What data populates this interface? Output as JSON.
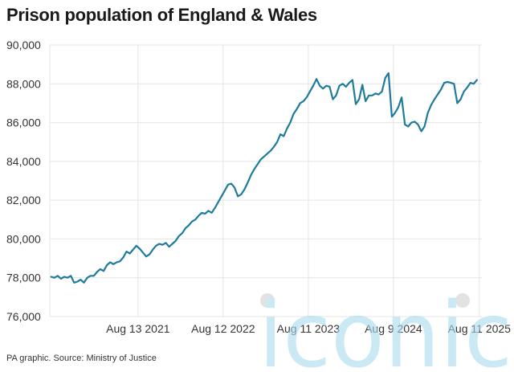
{
  "title": "Prison population of England & Wales",
  "source": "PA graphic. Source: Ministry of Justice",
  "watermark": {
    "text": "iconic"
  },
  "colors": {
    "line": "#1e7b9c",
    "grid": "#e4e4e4",
    "axis_text": "#333333",
    "watermark": "#a8dcef"
  },
  "chart_data": {
    "type": "line",
    "title": "Prison population of England & Wales",
    "xlabel": "",
    "ylabel": "",
    "ylim": [
      76000,
      90000
    ],
    "yticks": [
      76000,
      78000,
      80000,
      82000,
      84000,
      86000,
      88000,
      90000
    ],
    "ytick_labels": [
      "76,000",
      "78,000",
      "80,000",
      "82,000",
      "84,000",
      "86,000",
      "88,000",
      "90,000"
    ],
    "xlim": [
      "2020-08-01",
      "2025-08-22"
    ],
    "xticks": [
      {
        "date": "2021-08-13",
        "label": "Aug 13 2021"
      },
      {
        "date": "2022-08-12",
        "label": "Aug 12 2022"
      },
      {
        "date": "2023-08-11",
        "label": "Aug 11 2023"
      },
      {
        "date": "2024-08-09",
        "label": "Aug 9 2024"
      },
      {
        "date": "2025-08-11",
        "label": "Aug 11 2025"
      }
    ],
    "grid": true,
    "series": [
      {
        "name": "Prison population",
        "points": [
          [
            "2020-08-07",
            78050
          ],
          [
            "2020-08-21",
            78000
          ],
          [
            "2020-09-04",
            78100
          ],
          [
            "2020-09-18",
            77950
          ],
          [
            "2020-10-02",
            78050
          ],
          [
            "2020-10-16",
            78000
          ],
          [
            "2020-10-30",
            78100
          ],
          [
            "2020-11-13",
            77750
          ],
          [
            "2020-11-27",
            77800
          ],
          [
            "2020-12-11",
            77900
          ],
          [
            "2020-12-25",
            77750
          ],
          [
            "2021-01-08",
            78000
          ],
          [
            "2021-01-22",
            78100
          ],
          [
            "2021-02-05",
            78100
          ],
          [
            "2021-02-19",
            78300
          ],
          [
            "2021-03-05",
            78450
          ],
          [
            "2021-03-19",
            78350
          ],
          [
            "2021-04-02",
            78650
          ],
          [
            "2021-04-16",
            78800
          ],
          [
            "2021-04-30",
            78700
          ],
          [
            "2021-05-14",
            78800
          ],
          [
            "2021-05-28",
            78850
          ],
          [
            "2021-06-11",
            79050
          ],
          [
            "2021-06-25",
            79350
          ],
          [
            "2021-07-09",
            79250
          ],
          [
            "2021-07-23",
            79450
          ],
          [
            "2021-08-06",
            79650
          ],
          [
            "2021-08-20",
            79500
          ],
          [
            "2021-09-03",
            79300
          ],
          [
            "2021-09-17",
            79100
          ],
          [
            "2021-10-01",
            79200
          ],
          [
            "2021-10-15",
            79450
          ],
          [
            "2021-10-29",
            79650
          ],
          [
            "2021-11-12",
            79750
          ],
          [
            "2021-11-26",
            79700
          ],
          [
            "2021-12-10",
            79800
          ],
          [
            "2021-12-24",
            79600
          ],
          [
            "2022-01-07",
            79750
          ],
          [
            "2022-01-21",
            79900
          ],
          [
            "2022-02-04",
            80150
          ],
          [
            "2022-02-18",
            80300
          ],
          [
            "2022-03-04",
            80550
          ],
          [
            "2022-03-18",
            80700
          ],
          [
            "2022-04-01",
            80900
          ],
          [
            "2022-04-15",
            81000
          ],
          [
            "2022-04-29",
            81200
          ],
          [
            "2022-05-13",
            81350
          ],
          [
            "2022-05-27",
            81300
          ],
          [
            "2022-06-10",
            81450
          ],
          [
            "2022-06-24",
            81350
          ],
          [
            "2022-07-08",
            81600
          ],
          [
            "2022-07-22",
            81900
          ],
          [
            "2022-08-05",
            82200
          ],
          [
            "2022-08-19",
            82500
          ],
          [
            "2022-09-02",
            82800
          ],
          [
            "2022-09-16",
            82850
          ],
          [
            "2022-09-30",
            82650
          ],
          [
            "2022-10-14",
            82200
          ],
          [
            "2022-10-28",
            82300
          ],
          [
            "2022-11-11",
            82550
          ],
          [
            "2022-11-25",
            82900
          ],
          [
            "2022-12-09",
            83300
          ],
          [
            "2022-12-23",
            83600
          ],
          [
            "2023-01-06",
            83850
          ],
          [
            "2023-01-20",
            84100
          ],
          [
            "2023-02-03",
            84250
          ],
          [
            "2023-02-17",
            84400
          ],
          [
            "2023-03-03",
            84550
          ],
          [
            "2023-03-17",
            84750
          ],
          [
            "2023-03-31",
            85000
          ],
          [
            "2023-04-14",
            85400
          ],
          [
            "2023-04-28",
            85300
          ],
          [
            "2023-05-12",
            85700
          ],
          [
            "2023-05-26",
            86000
          ],
          [
            "2023-06-09",
            86450
          ],
          [
            "2023-06-23",
            86700
          ],
          [
            "2023-07-07",
            87000
          ],
          [
            "2023-07-21",
            87100
          ],
          [
            "2023-08-04",
            87300
          ],
          [
            "2023-08-18",
            87600
          ],
          [
            "2023-09-01",
            87900
          ],
          [
            "2023-09-15",
            88250
          ],
          [
            "2023-09-29",
            87900
          ],
          [
            "2023-10-13",
            87750
          ],
          [
            "2023-10-27",
            87900
          ],
          [
            "2023-11-10",
            87850
          ],
          [
            "2023-11-24",
            87200
          ],
          [
            "2023-12-08",
            87400
          ],
          [
            "2023-12-22",
            87900
          ],
          [
            "2024-01-05",
            88000
          ],
          [
            "2024-01-19",
            87850
          ],
          [
            "2024-02-02",
            88050
          ],
          [
            "2024-02-16",
            88200
          ],
          [
            "2024-03-01",
            86950
          ],
          [
            "2024-03-15",
            87200
          ],
          [
            "2024-03-29",
            87950
          ],
          [
            "2024-04-12",
            87100
          ],
          [
            "2024-04-26",
            87400
          ],
          [
            "2024-05-10",
            87400
          ],
          [
            "2024-05-24",
            87500
          ],
          [
            "2024-06-07",
            87450
          ],
          [
            "2024-06-21",
            87600
          ],
          [
            "2024-07-05",
            88300
          ],
          [
            "2024-07-19",
            88550
          ],
          [
            "2024-08-02",
            86300
          ],
          [
            "2024-08-16",
            86500
          ],
          [
            "2024-08-30",
            86800
          ],
          [
            "2024-09-13",
            87300
          ],
          [
            "2024-09-27",
            85900
          ],
          [
            "2024-10-11",
            85800
          ],
          [
            "2024-10-25",
            86000
          ],
          [
            "2024-11-08",
            86050
          ],
          [
            "2024-11-22",
            85900
          ],
          [
            "2024-12-06",
            85550
          ],
          [
            "2024-12-20",
            85800
          ],
          [
            "2025-01-03",
            86500
          ],
          [
            "2025-01-17",
            86900
          ],
          [
            "2025-01-31",
            87200
          ],
          [
            "2025-02-14",
            87450
          ],
          [
            "2025-02-28",
            87700
          ],
          [
            "2025-03-14",
            88050
          ],
          [
            "2025-03-28",
            88100
          ],
          [
            "2025-04-11",
            88050
          ],
          [
            "2025-04-25",
            88000
          ],
          [
            "2025-05-09",
            87000
          ],
          [
            "2025-05-23",
            87200
          ],
          [
            "2025-06-06",
            87600
          ],
          [
            "2025-06-20",
            87800
          ],
          [
            "2025-07-04",
            88050
          ],
          [
            "2025-07-18",
            88000
          ],
          [
            "2025-08-01",
            88200
          ]
        ]
      }
    ]
  }
}
